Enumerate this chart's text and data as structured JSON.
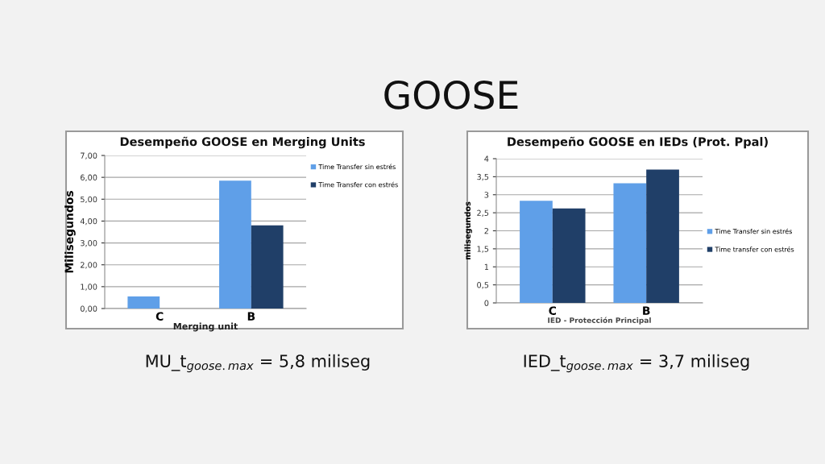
{
  "chart_data": [
    {
      "type": "bar",
      "title": "Desempeño GOOSE en Merging Units",
      "xlabel": "Merging unit",
      "ylabel": "Milisegundos",
      "categories": [
        "C",
        "B"
      ],
      "series": [
        {
          "name": "Time Transfer sin estrés",
          "color": "#5f9fe8",
          "values": [
            0.55,
            5.85
          ]
        },
        {
          "name": "Time Transfer con estrés",
          "color": "#203f68",
          "values": [
            null,
            3.8
          ]
        }
      ],
      "ylim": [
        0,
        7
      ],
      "yticks": [
        {
          "value": 0,
          "label": "0,00"
        },
        {
          "value": 1,
          "label": "1,00"
        },
        {
          "value": 2,
          "label": "2,00"
        },
        {
          "value": 3,
          "label": "3,00"
        },
        {
          "value": 4,
          "label": "4,00"
        },
        {
          "value": 5,
          "label": "5,00"
        },
        {
          "value": 6,
          "label": "6,00"
        },
        {
          "value": 7,
          "label": "7,00"
        }
      ],
      "grid": "y",
      "legend": "top right",
      "annotations": [
        "GOOSE",
        "MU_t$_{goose.max}$ = 5,8 miliseg"
      ]
    },
    {
      "type": "bar",
      "title": "Desempeño GOOSE en IEDs (Prot. Ppal)",
      "xlabel": "IED - Protección Principal",
      "ylabel": "milisegundos",
      "categories": [
        "C",
        "B"
      ],
      "series": [
        {
          "name": "Time Transfer sin estrés",
          "color": "#5f9fe8",
          "values": [
            2.83,
            3.32
          ]
        },
        {
          "name": "Time transfer con estrés",
          "color": "#203f68",
          "values": [
            2.62,
            3.7
          ]
        }
      ],
      "ylim": [
        0,
        4
      ],
      "yticks": [
        0,
        {
          "value": 0.5,
          "label": "0,5"
        },
        1,
        {
          "value": 1.5,
          "label": "1,5"
        },
        2,
        {
          "value": 2.5,
          "label": "2,5"
        },
        3,
        {
          "value": 3.5,
          "label": "3,5"
        },
        4
      ],
      "grid": "y",
      "legend": "right",
      "annotations": [
        "IED_t$_{goose.max}$ = 3,7 miliseg"
      ]
    }
  ]
}
